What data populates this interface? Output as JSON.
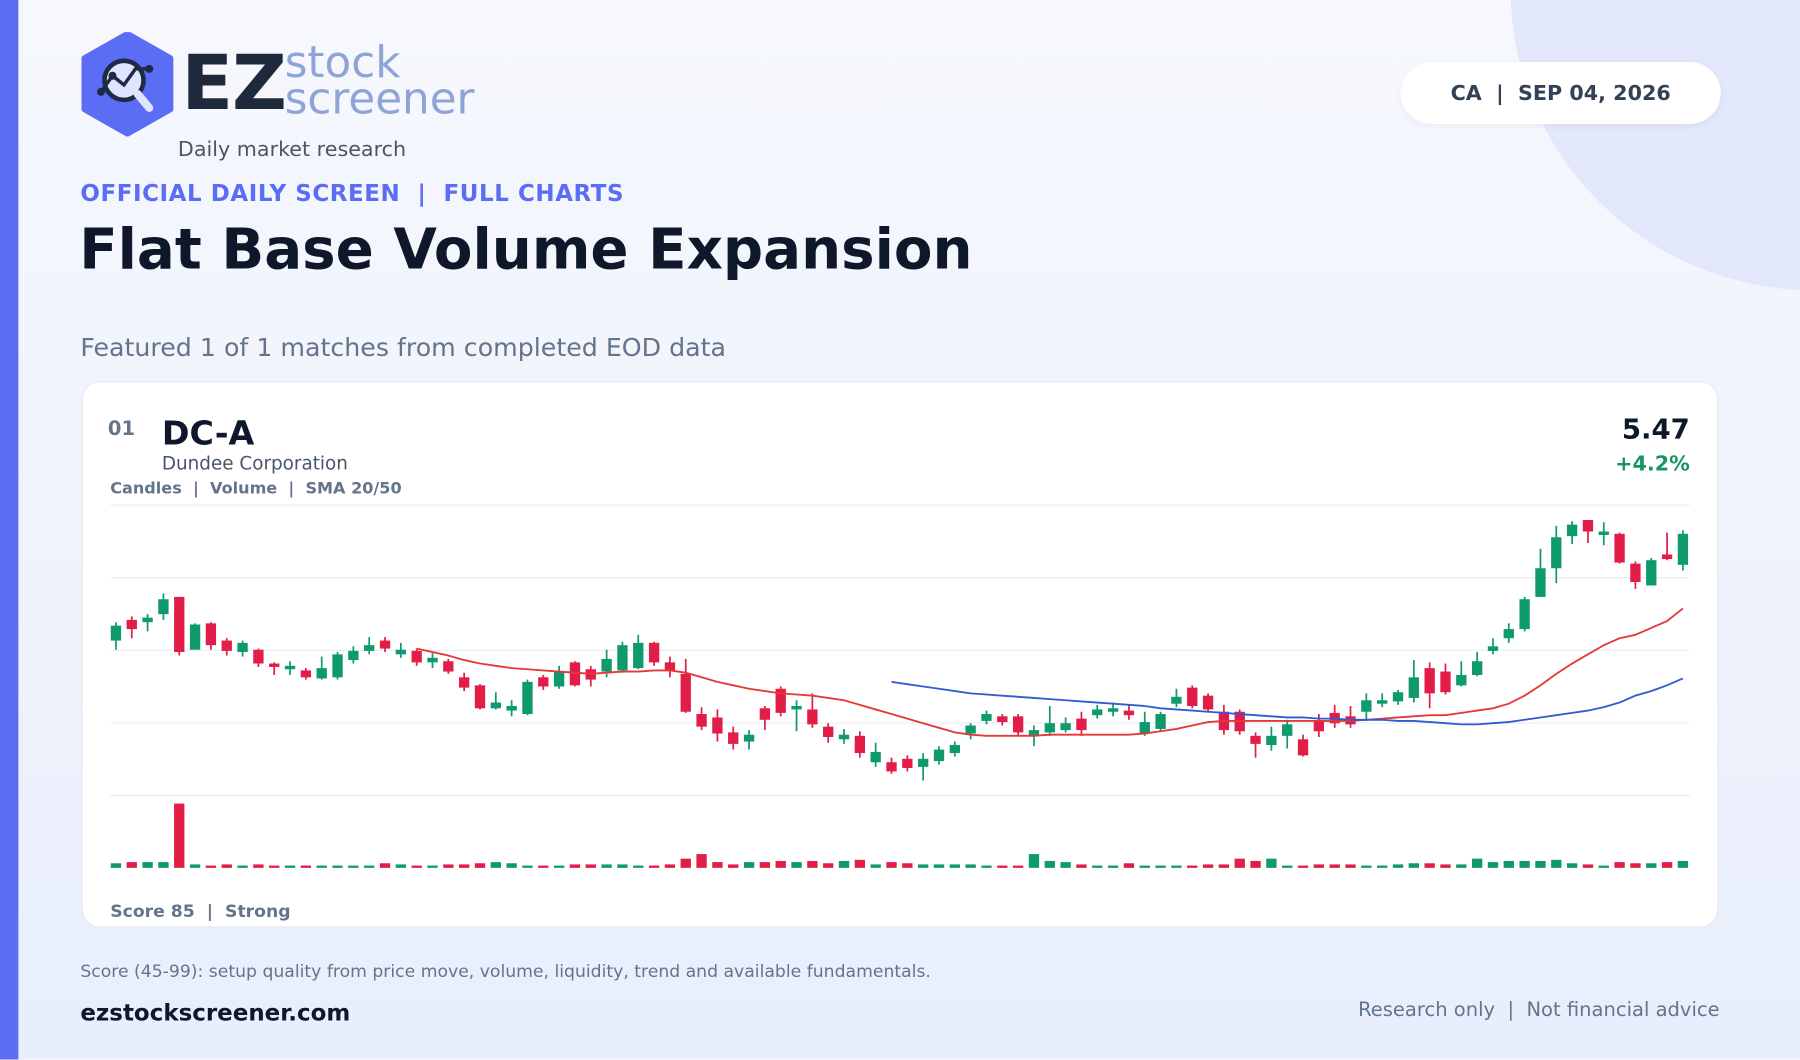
{
  "header": {
    "brand": "EZ",
    "brand_top": "stock",
    "brand_bottom": "screener",
    "tagline": "Daily market research",
    "badge": "CA  |  SEP 04, 2026",
    "kicker": "OFFICIAL DAILY SCREEN  |  FULL CHARTS",
    "title": "Flat Base Volume Expansion",
    "subtitle": "Featured 1 of 1 matches from completed EOD data"
  },
  "card": {
    "rank": "01",
    "ticker": "DC-A",
    "name": "Dundee Corporation",
    "price": 5.47,
    "change": "+4.2%",
    "legend": "Candles  |  Volume  |  SMA 20/50",
    "score": "Score 85  |  Strong"
  },
  "chart_data": {
    "type": "candlestick",
    "up_color": "#0e9a6c",
    "down_color": "#e11d48",
    "ylim": [
      3.19,
      5.72
    ],
    "grid": true,
    "open": [
      4.54,
      4.72,
      4.7,
      4.77,
      4.92,
      4.46,
      4.69,
      4.54,
      4.44,
      4.46,
      4.34,
      4.29,
      4.28,
      4.21,
      4.22,
      4.37,
      4.45,
      4.54,
      4.42,
      4.45,
      4.35,
      4.36,
      4.22,
      4.15,
      3.95,
      3.93,
      3.9,
      4.22,
      4.14,
      4.35,
      4.29,
      4.27,
      4.28,
      4.3,
      4.52,
      4.35,
      4.25,
      3.9,
      3.87,
      3.74,
      3.66,
      3.95,
      4.12,
      3.94,
      3.94,
      3.79,
      3.68,
      3.71,
      3.48,
      3.48,
      3.51,
      3.44,
      3.49,
      3.56,
      3.73,
      3.84,
      3.88,
      3.88,
      3.71,
      3.74,
      3.76,
      3.86,
      3.89,
      3.92,
      3.93,
      3.73,
      3.77,
      3.99,
      4.13,
      4.06,
      3.92,
      3.92,
      3.71,
      3.63,
      3.71,
      3.68,
      3.84,
      3.91,
      3.88,
      3.92,
      3.99,
      4.01,
      4.04,
      4.3,
      4.27,
      4.15,
      4.24,
      4.45,
      4.56,
      4.64,
      4.92,
      5.17,
      5.45,
      5.59,
      5.46,
      5.47,
      5.21,
      5.02,
      5.29,
      5.2
    ],
    "high": [
      4.7,
      4.75,
      4.77,
      4.95,
      4.92,
      4.69,
      4.7,
      4.56,
      4.54,
      4.47,
      4.35,
      4.36,
      4.3,
      4.4,
      4.44,
      4.49,
      4.57,
      4.57,
      4.52,
      4.47,
      4.43,
      4.38,
      4.26,
      4.16,
      4.09,
      4.02,
      4.2,
      4.24,
      4.32,
      4.36,
      4.32,
      4.46,
      4.53,
      4.59,
      4.53,
      4.4,
      4.38,
      3.96,
      3.94,
      3.79,
      3.76,
      3.97,
      4.14,
      4.02,
      4.08,
      3.82,
      3.77,
      3.75,
      3.65,
      3.52,
      3.54,
      3.56,
      3.62,
      3.66,
      3.82,
      3.93,
      3.9,
      3.9,
      3.8,
      3.97,
      3.87,
      3.92,
      3.98,
      4.0,
      3.98,
      3.92,
      3.92,
      4.12,
      4.15,
      4.08,
      3.98,
      3.94,
      3.74,
      3.79,
      3.85,
      3.72,
      3.9,
      3.98,
      3.97,
      4.08,
      4.08,
      4.11,
      4.37,
      4.35,
      4.34,
      4.36,
      4.44,
      4.56,
      4.69,
      4.92,
      5.34,
      5.54,
      5.58,
      5.59,
      5.57,
      5.48,
      5.23,
      5.26,
      5.48,
      5.5
    ],
    "low": [
      4.46,
      4.56,
      4.62,
      4.72,
      4.41,
      4.46,
      4.46,
      4.41,
      4.4,
      4.31,
      4.24,
      4.24,
      4.2,
      4.2,
      4.2,
      4.34,
      4.42,
      4.44,
      4.39,
      4.32,
      4.3,
      4.25,
      4.1,
      3.94,
      3.94,
      3.88,
      3.89,
      4.11,
      4.12,
      4.14,
      4.14,
      4.22,
      4.26,
      4.29,
      4.32,
      4.22,
      3.91,
      3.76,
      3.66,
      3.59,
      3.59,
      3.76,
      3.88,
      3.75,
      3.78,
      3.65,
      3.64,
      3.52,
      3.44,
      3.38,
      3.4,
      3.32,
      3.46,
      3.53,
      3.68,
      3.81,
      3.8,
      3.71,
      3.62,
      3.71,
      3.74,
      3.71,
      3.86,
      3.88,
      3.85,
      3.71,
      3.75,
      3.96,
      3.95,
      3.92,
      3.72,
      3.72,
      3.52,
      3.58,
      3.6,
      3.53,
      3.7,
      3.78,
      3.78,
      3.84,
      3.96,
      3.98,
      4.0,
      3.95,
      4.07,
      4.14,
      4.23,
      4.42,
      4.52,
      4.62,
      4.92,
      5.04,
      5.38,
      5.39,
      5.37,
      5.21,
      4.99,
      5.02,
      5.24,
      5.15
    ],
    "close": [
      4.67,
      4.64,
      4.74,
      4.9,
      4.44,
      4.68,
      4.5,
      4.45,
      4.52,
      4.34,
      4.31,
      4.32,
      4.22,
      4.3,
      4.42,
      4.45,
      4.5,
      4.47,
      4.46,
      4.35,
      4.39,
      4.27,
      4.13,
      3.95,
      4.0,
      3.97,
      4.18,
      4.14,
      4.27,
      4.15,
      4.2,
      4.38,
      4.5,
      4.52,
      4.35,
      4.28,
      3.92,
      3.79,
      3.73,
      3.64,
      3.72,
      3.85,
      3.91,
      3.97,
      3.81,
      3.7,
      3.72,
      3.56,
      3.57,
      3.4,
      3.43,
      3.51,
      3.59,
      3.63,
      3.8,
      3.9,
      3.83,
      3.74,
      3.76,
      3.82,
      3.82,
      3.76,
      3.94,
      3.95,
      3.89,
      3.83,
      3.9,
      4.05,
      3.97,
      3.94,
      3.76,
      3.75,
      3.64,
      3.71,
      3.81,
      3.54,
      3.75,
      3.82,
      3.81,
      4.02,
      4.02,
      4.09,
      4.22,
      4.08,
      4.09,
      4.24,
      4.36,
      4.49,
      4.64,
      4.9,
      5.17,
      5.44,
      5.55,
      5.49,
      5.49,
      5.22,
      5.05,
      5.24,
      5.25,
      5.47
    ],
    "volume": [
      4,
      5,
      5,
      5,
      56,
      3,
      2,
      3,
      2,
      3,
      2,
      2,
      2,
      2,
      2,
      2,
      2,
      4,
      3,
      2,
      2,
      3,
      3,
      4,
      5,
      4,
      2,
      2,
      2,
      3,
      3,
      3,
      3,
      2,
      2,
      3,
      8,
      12,
      5,
      3,
      5,
      5,
      6,
      5,
      6,
      4,
      6,
      7,
      3,
      5,
      4,
      3,
      3,
      3,
      3,
      2,
      2,
      2,
      12,
      6,
      5,
      3,
      2,
      2,
      4,
      2,
      2,
      2,
      2,
      3,
      3,
      8,
      6,
      8,
      2,
      2,
      3,
      3,
      3,
      2,
      2,
      3,
      4,
      4,
      3,
      3,
      8,
      5,
      6,
      6,
      6,
      7,
      4,
      3,
      2,
      5,
      4,
      4,
      5,
      6
    ],
    "sma20_color": "#e53935",
    "sma50_color": "#2f5bd3",
    "sma20": [
      null,
      null,
      null,
      null,
      null,
      null,
      null,
      null,
      null,
      null,
      null,
      null,
      null,
      null,
      null,
      null,
      null,
      null,
      null,
      4.47,
      4.44,
      4.41,
      4.37,
      4.34,
      4.32,
      4.3,
      4.29,
      4.28,
      4.27,
      4.26,
      4.25,
      4.26,
      4.27,
      4.27,
      4.28,
      4.28,
      4.26,
      4.22,
      4.18,
      4.15,
      4.12,
      4.1,
      4.08,
      4.07,
      4.06,
      4.04,
      4.02,
      3.98,
      3.94,
      3.9,
      3.86,
      3.82,
      3.78,
      3.74,
      3.72,
      3.71,
      3.71,
      3.71,
      3.71,
      3.72,
      3.72,
      3.72,
      3.72,
      3.72,
      3.72,
      3.73,
      3.75,
      3.77,
      3.8,
      3.83,
      3.84,
      3.84,
      3.84,
      3.84,
      3.84,
      3.84,
      3.84,
      3.84,
      3.84,
      3.85,
      3.86,
      3.87,
      3.88,
      3.89,
      3.89,
      3.91,
      3.93,
      3.95,
      3.99,
      4.06,
      4.15,
      4.25,
      4.34,
      4.42,
      4.5,
      4.56,
      4.59,
      4.65,
      4.71,
      4.82
    ],
    "sma50": [
      null,
      null,
      null,
      null,
      null,
      null,
      null,
      null,
      null,
      null,
      null,
      null,
      null,
      null,
      null,
      null,
      null,
      null,
      null,
      null,
      null,
      null,
      null,
      null,
      null,
      null,
      null,
      null,
      null,
      null,
      null,
      null,
      null,
      null,
      null,
      null,
      null,
      null,
      null,
      null,
      null,
      null,
      null,
      null,
      null,
      null,
      null,
      null,
      null,
      4.18,
      4.16,
      4.14,
      4.12,
      4.1,
      4.08,
      4.07,
      4.06,
      4.05,
      4.04,
      4.03,
      4.02,
      4.01,
      4.0,
      3.99,
      3.98,
      3.97,
      3.95,
      3.94,
      3.93,
      3.92,
      3.91,
      3.9,
      3.89,
      3.88,
      3.87,
      3.87,
      3.86,
      3.86,
      3.85,
      3.85,
      3.85,
      3.84,
      3.84,
      3.83,
      3.82,
      3.81,
      3.81,
      3.82,
      3.83,
      3.85,
      3.87,
      3.89,
      3.91,
      3.93,
      3.96,
      4.0,
      4.06,
      4.1,
      4.15,
      4.21
    ]
  },
  "footer": {
    "note": "Score (45-99): setup quality from price move, volume, liquidity, trend and available fundamentals.",
    "site": "ezstockscreener.com",
    "disclaimer": "Research only  |  Not financial advice"
  }
}
